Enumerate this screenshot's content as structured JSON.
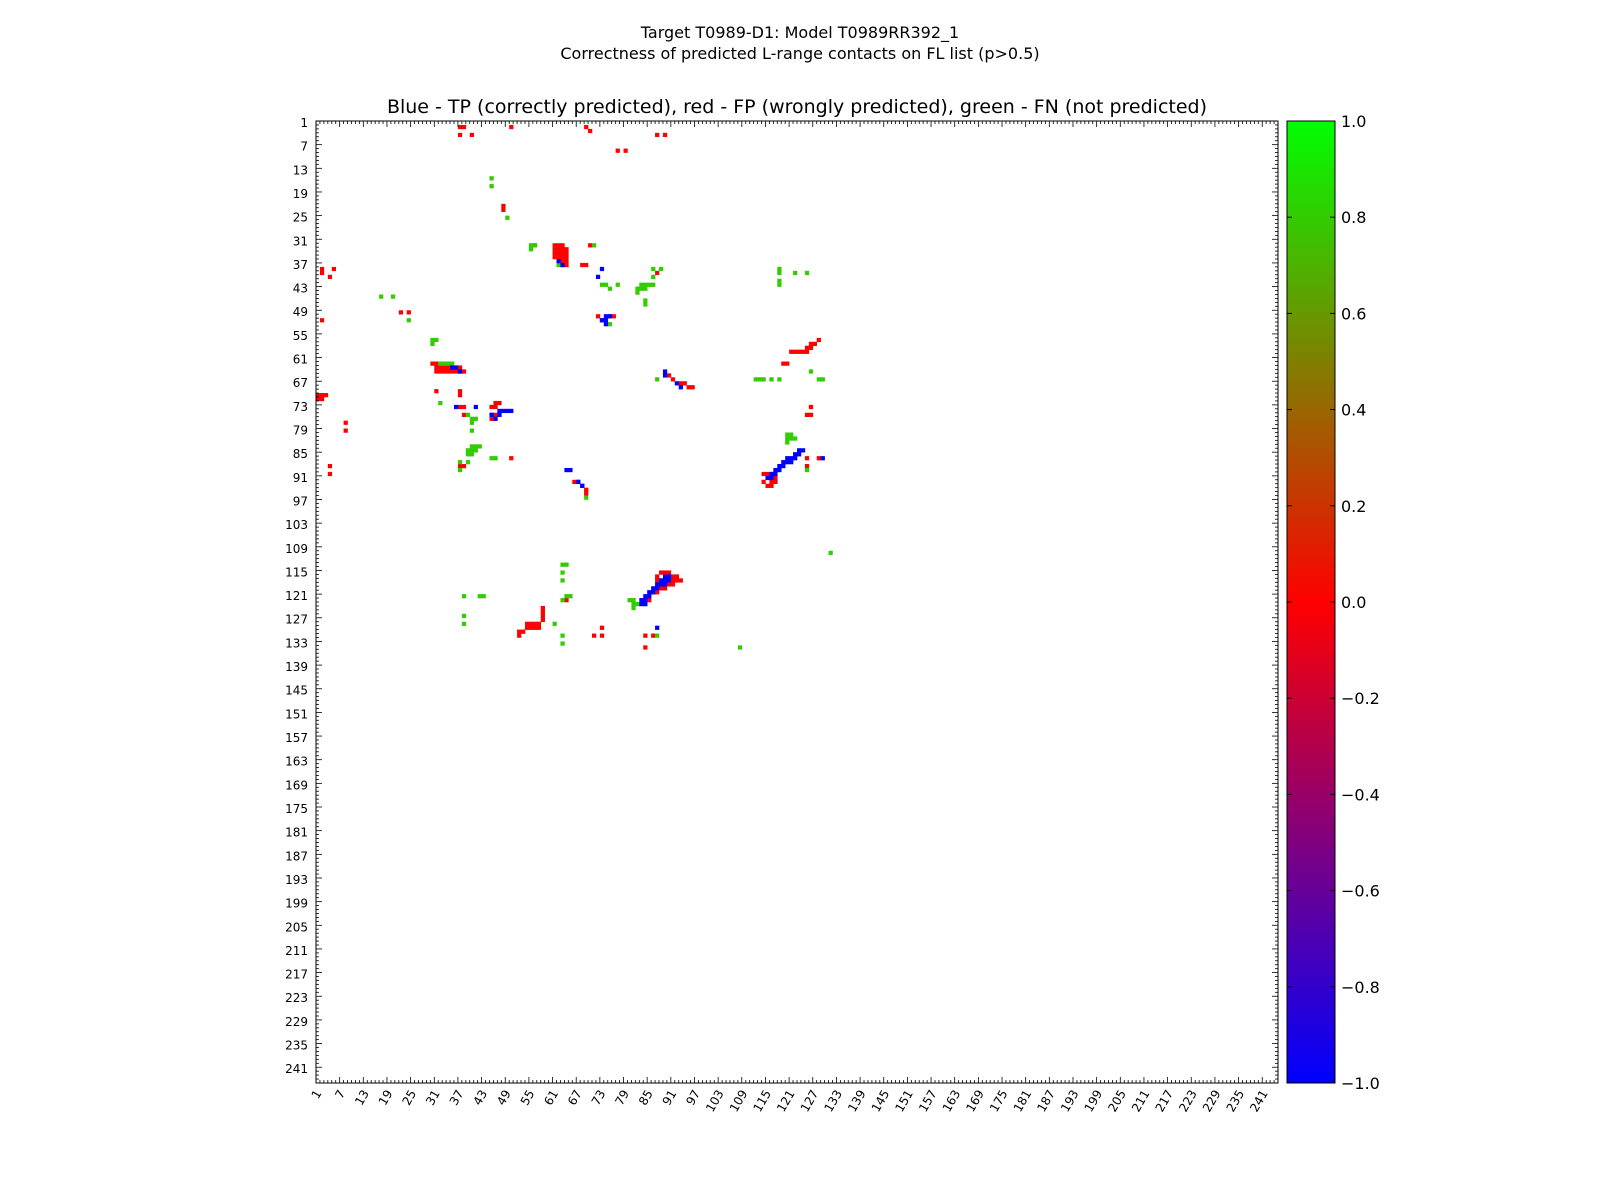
{
  "chart_data": {
    "type": "heatmap",
    "suptitle_line1": "Target T0989-D1: Model T0989RR392_1",
    "suptitle_line2": "Correctness of predicted L-range contacts on FL list (p>0.5)",
    "title": "Blue - TP (correctly predicted), red - FP (wrongly predicted), green - FN (not predicted)",
    "xlabel": "",
    "ylabel": "",
    "n_residues": 244,
    "x_tick_labels": [
      "1",
      "7",
      "13",
      "19",
      "25",
      "31",
      "37",
      "43",
      "49",
      "55",
      "61",
      "67",
      "73",
      "79",
      "85",
      "91",
      "97",
      "103",
      "109",
      "115",
      "121",
      "127",
      "133",
      "139",
      "145",
      "151",
      "157",
      "163",
      "169",
      "175",
      "181",
      "187",
      "193",
      "199",
      "205",
      "211",
      "217",
      "223",
      "229",
      "235",
      "241"
    ],
    "y_tick_labels": [
      "1",
      "7",
      "13",
      "19",
      "25",
      "31",
      "37",
      "43",
      "49",
      "55",
      "61",
      "67",
      "73",
      "79",
      "85",
      "91",
      "97",
      "103",
      "109",
      "115",
      "121",
      "127",
      "133",
      "139",
      "145",
      "151",
      "157",
      "163",
      "169",
      "175",
      "181",
      "187",
      "193",
      "199",
      "205",
      "211",
      "217",
      "223",
      "229",
      "235",
      "241"
    ],
    "colorbar": {
      "range": [
        -1.0,
        1.0
      ],
      "tick_labels": [
        "1.0",
        "0.8",
        "0.6",
        "0.4",
        "0.2",
        "0.0",
        "−0.2",
        "−0.4",
        "−0.6",
        "−0.8",
        "−1.0"
      ],
      "tick_values": [
        1.0,
        0.8,
        0.6,
        0.4,
        0.2,
        0.0,
        -0.2,
        -0.4,
        -0.6,
        -0.8,
        -1.0
      ],
      "gradient": [
        "#0000ff",
        "#ff0000",
        "#00ff00"
      ]
    },
    "legend": {
      "tp": {
        "value": -1,
        "color": "#0000ff"
      },
      "fp": {
        "value": 0,
        "color": "#ff0000"
      },
      "fn": {
        "value": 0.8,
        "color": "#33cc00"
      }
    },
    "fp_cells": [
      [
        36,
        1
      ],
      [
        37,
        1
      ],
      [
        49,
        1
      ],
      [
        68,
        1
      ],
      [
        69,
        2
      ],
      [
        36,
        3
      ],
      [
        39,
        3
      ],
      [
        86,
        3
      ],
      [
        88,
        3
      ],
      [
        76,
        7
      ],
      [
        78,
        7
      ],
      [
        47,
        21
      ],
      [
        47,
        22
      ],
      [
        55,
        31
      ],
      [
        60,
        31
      ],
      [
        61,
        31
      ],
      [
        62,
        31
      ],
      [
        69,
        31
      ],
      [
        60,
        32
      ],
      [
        61,
        32
      ],
      [
        62,
        32
      ],
      [
        63,
        32
      ],
      [
        60,
        33
      ],
      [
        61,
        33
      ],
      [
        62,
        33
      ],
      [
        63,
        33
      ],
      [
        60,
        34
      ],
      [
        61,
        34
      ],
      [
        62,
        34
      ],
      [
        63,
        34
      ],
      [
        62,
        35
      ],
      [
        63,
        35
      ],
      [
        62,
        36
      ],
      [
        63,
        36
      ],
      [
        67,
        36
      ],
      [
        68,
        36
      ],
      [
        1,
        37
      ],
      [
        4,
        37
      ],
      [
        1,
        38
      ],
      [
        86,
        38
      ],
      [
        3,
        39
      ],
      [
        21,
        48
      ],
      [
        23,
        48
      ],
      [
        71,
        49
      ],
      [
        74,
        49
      ],
      [
        75,
        49
      ],
      [
        72,
        50
      ],
      [
        73,
        50
      ],
      [
        1,
        50
      ],
      [
        127,
        55
      ],
      [
        125,
        56
      ],
      [
        126,
        56
      ],
      [
        124,
        57
      ],
      [
        125,
        57
      ],
      [
        120,
        58
      ],
      [
        121,
        58
      ],
      [
        122,
        58
      ],
      [
        123,
        58
      ],
      [
        124,
        58
      ],
      [
        118,
        61
      ],
      [
        119,
        61
      ],
      [
        29,
        61
      ],
      [
        30,
        61
      ],
      [
        31,
        61
      ],
      [
        32,
        61
      ],
      [
        33,
        61
      ],
      [
        30,
        62
      ],
      [
        31,
        62
      ],
      [
        32,
        62
      ],
      [
        33,
        62
      ],
      [
        34,
        62
      ],
      [
        35,
        62
      ],
      [
        36,
        62
      ],
      [
        30,
        63
      ],
      [
        31,
        63
      ],
      [
        32,
        63
      ],
      [
        33,
        63
      ],
      [
        34,
        63
      ],
      [
        35,
        63
      ],
      [
        36,
        63
      ],
      [
        37,
        63
      ],
      [
        89,
        64
      ],
      [
        90,
        65
      ],
      [
        92,
        66
      ],
      [
        93,
        66
      ],
      [
        94,
        67
      ],
      [
        95,
        67
      ],
      [
        0,
        69
      ],
      [
        1,
        69
      ],
      [
        2,
        69
      ],
      [
        30,
        68
      ],
      [
        36,
        68
      ],
      [
        36,
        69
      ],
      [
        0,
        70
      ],
      [
        1,
        70
      ],
      [
        45,
        71
      ],
      [
        46,
        71
      ],
      [
        36,
        72
      ],
      [
        37,
        72
      ],
      [
        44,
        72
      ],
      [
        45,
        72
      ],
      [
        125,
        72
      ],
      [
        37,
        74
      ],
      [
        44,
        74
      ],
      [
        45,
        74
      ],
      [
        124,
        74
      ],
      [
        125,
        74
      ],
      [
        44,
        75
      ],
      [
        7,
        76
      ],
      [
        7,
        78
      ],
      [
        124,
        85
      ],
      [
        127,
        85
      ],
      [
        49,
        85
      ],
      [
        3,
        87
      ],
      [
        124,
        87
      ],
      [
        36,
        87
      ],
      [
        37,
        87
      ],
      [
        3,
        89
      ],
      [
        113,
        89
      ],
      [
        114,
        89
      ],
      [
        115,
        89
      ],
      [
        114,
        90
      ],
      [
        115,
        90
      ],
      [
        116,
        90
      ],
      [
        113,
        91
      ],
      [
        115,
        91
      ],
      [
        116,
        91
      ],
      [
        114,
        92
      ],
      [
        115,
        92
      ],
      [
        116,
        91
      ],
      [
        65,
        91
      ],
      [
        66,
        91
      ],
      [
        67,
        92
      ],
      [
        68,
        93
      ],
      [
        68,
        94
      ],
      [
        87,
        114
      ],
      [
        88,
        114
      ],
      [
        89,
        114
      ],
      [
        86,
        115
      ],
      [
        90,
        115
      ],
      [
        91,
        115
      ],
      [
        86,
        116
      ],
      [
        87,
        116
      ],
      [
        90,
        116
      ],
      [
        91,
        116
      ],
      [
        92,
        116
      ],
      [
        87,
        117
      ],
      [
        88,
        117
      ],
      [
        89,
        117
      ],
      [
        90,
        117
      ],
      [
        86,
        118
      ],
      [
        87,
        118
      ],
      [
        88,
        118
      ],
      [
        85,
        119
      ],
      [
        86,
        119
      ],
      [
        83,
        121
      ],
      [
        84,
        121
      ],
      [
        63,
        121
      ],
      [
        57,
        123
      ],
      [
        57,
        124
      ],
      [
        57,
        125
      ],
      [
        57,
        126
      ],
      [
        56,
        127
      ],
      [
        55,
        127
      ],
      [
        54,
        127
      ],
      [
        53,
        127
      ],
      [
        56,
        128
      ],
      [
        55,
        128
      ],
      [
        54,
        128
      ],
      [
        53,
        128
      ],
      [
        52,
        129
      ],
      [
        51,
        129
      ],
      [
        51,
        130
      ],
      [
        72,
        128
      ],
      [
        70,
        130
      ],
      [
        72,
        130
      ],
      [
        83,
        130
      ],
      [
        85,
        130
      ],
      [
        83,
        133
      ]
    ],
    "tp_cells": [
      [
        61,
        35
      ],
      [
        62,
        36
      ],
      [
        72,
        37
      ],
      [
        71,
        39
      ],
      [
        73,
        49
      ],
      [
        74,
        49
      ],
      [
        72,
        50
      ],
      [
        73,
        50
      ],
      [
        73,
        51
      ],
      [
        34,
        62
      ],
      [
        35,
        62
      ],
      [
        36,
        63
      ],
      [
        88,
        63
      ],
      [
        88,
        64
      ],
      [
        91,
        66
      ],
      [
        92,
        67
      ],
      [
        35,
        72
      ],
      [
        40,
        72
      ],
      [
        46,
        73
      ],
      [
        47,
        73
      ],
      [
        48,
        73
      ],
      [
        49,
        73
      ],
      [
        44,
        74
      ],
      [
        46,
        74
      ],
      [
        45,
        75
      ],
      [
        122,
        83
      ],
      [
        123,
        83
      ],
      [
        121,
        84
      ],
      [
        122,
        84
      ],
      [
        119,
        85
      ],
      [
        120,
        85
      ],
      [
        121,
        85
      ],
      [
        128,
        85
      ],
      [
        118,
        86
      ],
      [
        119,
        86
      ],
      [
        120,
        86
      ],
      [
        117,
        87
      ],
      [
        118,
        87
      ],
      [
        116,
        88
      ],
      [
        117,
        88
      ],
      [
        115,
        89
      ],
      [
        116,
        89
      ],
      [
        114,
        90
      ],
      [
        115,
        90
      ],
      [
        63,
        88
      ],
      [
        64,
        88
      ],
      [
        66,
        91
      ],
      [
        67,
        92
      ],
      [
        88,
        115
      ],
      [
        89,
        115
      ],
      [
        87,
        116
      ],
      [
        88,
        116
      ],
      [
        89,
        116
      ],
      [
        86,
        117
      ],
      [
        87,
        117
      ],
      [
        88,
        117
      ],
      [
        85,
        118
      ],
      [
        86,
        118
      ],
      [
        84,
        119
      ],
      [
        85,
        119
      ],
      [
        83,
        120
      ],
      [
        84,
        120
      ],
      [
        82,
        121
      ],
      [
        83,
        121
      ],
      [
        82,
        122
      ],
      [
        83,
        122
      ],
      [
        86,
        128
      ]
    ],
    "fn_cells": [
      [
        44,
        14
      ],
      [
        44,
        16
      ],
      [
        48,
        24
      ],
      [
        54,
        31
      ],
      [
        55,
        31
      ],
      [
        70,
        31
      ],
      [
        54,
        32
      ],
      [
        61,
        35
      ],
      [
        61,
        36
      ],
      [
        85,
        37
      ],
      [
        87,
        37
      ],
      [
        85,
        39
      ],
      [
        117,
        38
      ],
      [
        121,
        38
      ],
      [
        124,
        38
      ],
      [
        72,
        41
      ],
      [
        73,
        41
      ],
      [
        76,
        41
      ],
      [
        82,
        41
      ],
      [
        83,
        41
      ],
      [
        84,
        41
      ],
      [
        85,
        41
      ],
      [
        81,
        42
      ],
      [
        82,
        42
      ],
      [
        83,
        42
      ],
      [
        81,
        43
      ],
      [
        74,
        42
      ],
      [
        16,
        44
      ],
      [
        19,
        44
      ],
      [
        83,
        45
      ],
      [
        83,
        46
      ],
      [
        74,
        51
      ],
      [
        23,
        50
      ],
      [
        29,
        55
      ],
      [
        30,
        55
      ],
      [
        29,
        56
      ],
      [
        31,
        61
      ],
      [
        32,
        61
      ],
      [
        33,
        61
      ],
      [
        34,
        61
      ],
      [
        117,
        37
      ],
      [
        117,
        40
      ],
      [
        117,
        41
      ],
      [
        111,
        65
      ],
      [
        112,
        65
      ],
      [
        113,
        65
      ],
      [
        115,
        65
      ],
      [
        117,
        65
      ],
      [
        125,
        63
      ],
      [
        127,
        65
      ],
      [
        128,
        65
      ],
      [
        86,
        65
      ],
      [
        31,
        71
      ],
      [
        38,
        74
      ],
      [
        39,
        75
      ],
      [
        40,
        75
      ],
      [
        39,
        76
      ],
      [
        39,
        78
      ],
      [
        119,
        79
      ],
      [
        120,
        79
      ],
      [
        119,
        80
      ],
      [
        120,
        80
      ],
      [
        121,
        80
      ],
      [
        119,
        81
      ],
      [
        39,
        82
      ],
      [
        40,
        82
      ],
      [
        41,
        82
      ],
      [
        38,
        83
      ],
      [
        39,
        83
      ],
      [
        40,
        83
      ],
      [
        38,
        84
      ],
      [
        39,
        84
      ],
      [
        44,
        85
      ],
      [
        45,
        85
      ],
      [
        36,
        86
      ],
      [
        38,
        86
      ],
      [
        36,
        88
      ],
      [
        124,
        88
      ],
      [
        62,
        121
      ],
      [
        63,
        120
      ],
      [
        64,
        120
      ],
      [
        79,
        121
      ],
      [
        80,
        121
      ],
      [
        80,
        122
      ],
      [
        81,
        122
      ],
      [
        80,
        123
      ],
      [
        37,
        120
      ],
      [
        41,
        120
      ],
      [
        42,
        120
      ],
      [
        37,
        125
      ],
      [
        37,
        127
      ],
      [
        62,
        112
      ],
      [
        63,
        112
      ],
      [
        62,
        114
      ],
      [
        62,
        116
      ],
      [
        68,
        95
      ],
      [
        60,
        127
      ],
      [
        62,
        130
      ],
      [
        62,
        132
      ],
      [
        86,
        130
      ],
      [
        107,
        133
      ],
      [
        130,
        109
      ]
    ]
  }
}
